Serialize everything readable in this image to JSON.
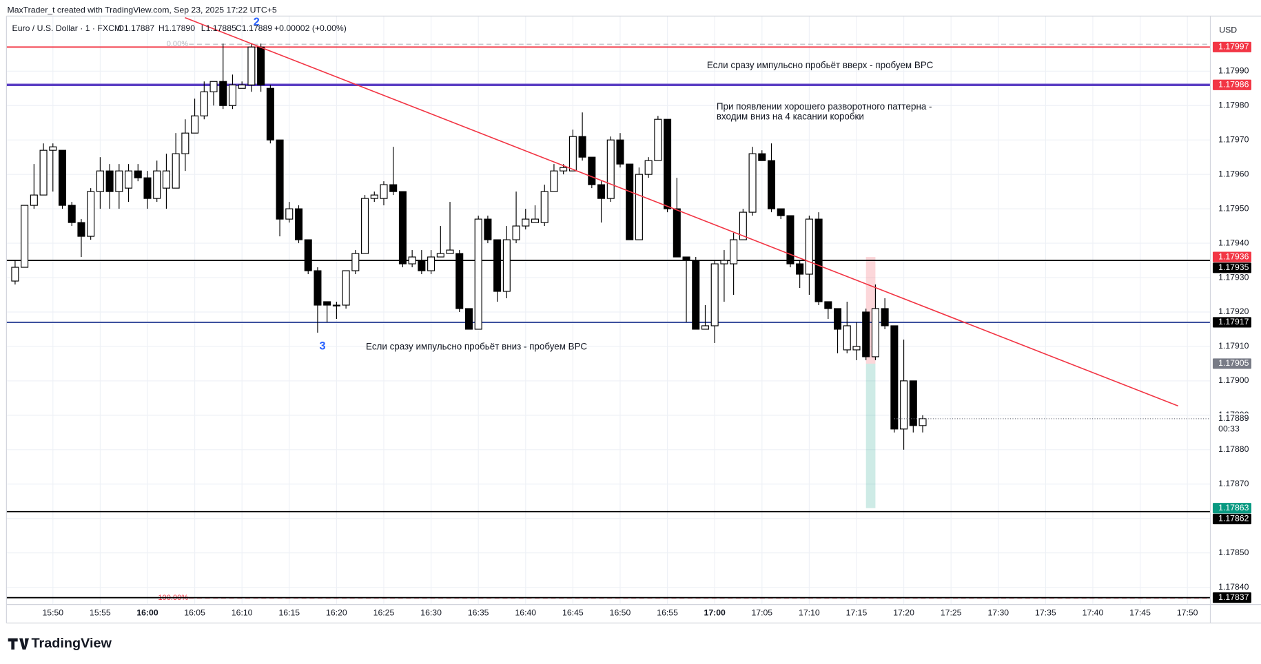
{
  "header": {
    "attribution": "MaxTrader_t created with TradingView.com, Sep 23, 2025 17:22 UTC+5",
    "symbol": "Euro / U.S. Dollar · 1 · FXCM",
    "ohlc": [
      "O1.17887",
      "H1.17890",
      "L1.17885",
      "C1.17889"
    ],
    "change": "+0.00002 (+0.00%)"
  },
  "chart_data": {
    "type": "candlestick",
    "x": [
      "15:46",
      "15:47",
      "15:48",
      "15:49",
      "15:50",
      "15:51",
      "15:52",
      "15:53",
      "15:54",
      "15:55",
      "15:56",
      "15:57",
      "15:58",
      "15:59",
      "16:00",
      "16:01",
      "16:02",
      "16:03",
      "16:04",
      "16:05",
      "16:06",
      "16:07",
      "16:08",
      "16:09",
      "16:10",
      "16:11",
      "16:12",
      "16:13",
      "16:14",
      "16:15",
      "16:16",
      "16:17",
      "16:18",
      "16:19",
      "16:20",
      "16:21",
      "16:22",
      "16:23",
      "16:24",
      "16:25",
      "16:26",
      "16:27",
      "16:28",
      "16:29",
      "16:30",
      "16:31",
      "16:32",
      "16:33",
      "16:34",
      "16:35",
      "16:36",
      "16:37",
      "16:38",
      "16:39",
      "16:40",
      "16:41",
      "16:42",
      "16:43",
      "16:44",
      "16:45",
      "16:46",
      "16:47",
      "16:48",
      "16:49",
      "16:50",
      "16:51",
      "16:52",
      "16:53",
      "16:54",
      "16:55",
      "16:56",
      "16:57",
      "16:58",
      "16:59",
      "17:00",
      "17:01",
      "17:02",
      "17:03",
      "17:04",
      "17:05",
      "17:06",
      "17:07",
      "17:08",
      "17:09",
      "17:10",
      "17:11",
      "17:12",
      "17:13",
      "17:14",
      "17:15",
      "17:16",
      "17:17",
      "17:18",
      "17:19",
      "17:20",
      "17:21",
      "17:22"
    ],
    "open": [
      1.17929,
      1.17933,
      1.17951,
      1.17954,
      1.17967,
      1.17967,
      1.17951,
      1.17946,
      1.17942,
      1.17955,
      1.17961,
      1.17955,
      1.17956,
      1.17961,
      1.17959,
      1.17953,
      1.17956,
      1.17956,
      1.17966,
      1.17972,
      1.17977,
      1.17984,
      1.17987,
      1.1798,
      1.17985,
      1.17986,
      1.17997,
      1.17985,
      1.1797,
      1.17947,
      1.1795,
      1.17941,
      1.17932,
      1.17923,
      1.17922,
      1.17922,
      1.17932,
      1.17937,
      1.17953,
      1.17953,
      1.17957,
      1.17955,
      1.17934,
      1.17935,
      1.17932,
      1.17936,
      1.17937,
      1.17937,
      1.17921,
      1.17915,
      1.17947,
      1.17941,
      1.17926,
      1.17941,
      1.17945,
      1.17946,
      1.17946,
      1.17955,
      1.17961,
      1.17961,
      1.17971,
      1.17965,
      1.17957,
      1.17953,
      1.1797,
      1.17963,
      1.17941,
      1.1796,
      1.17964,
      1.17976,
      1.1795,
      1.17936,
      1.17935,
      1.17915,
      1.17916,
      1.17934,
      1.17934,
      1.17941,
      1.17949,
      1.17966,
      1.17964,
      1.1795,
      1.17948,
      1.17934,
      1.17931,
      1.17947,
      1.17923,
      1.17921,
      1.17909,
      1.17909,
      1.1792,
      1.17907,
      1.17921,
      1.17916,
      1.17886,
      1.179,
      1.17887
    ],
    "high": [
      1.17935,
      1.17951,
      1.17963,
      1.17969,
      1.17969,
      1.17967,
      1.17952,
      1.17947,
      1.17956,
      1.17965,
      1.17963,
      1.17963,
      1.17963,
      1.17963,
      1.17961,
      1.17964,
      1.17966,
      1.17972,
      1.17976,
      1.17982,
      1.17987,
      1.17987,
      1.17998,
      1.17989,
      1.17987,
      1.17998,
      1.17998,
      1.17986,
      1.1797,
      1.17952,
      1.17951,
      1.17941,
      1.17933,
      1.17923,
      1.17923,
      1.17932,
      1.17938,
      1.17954,
      1.17955,
      1.17958,
      1.17968,
      1.17955,
      1.17938,
      1.17938,
      1.17938,
      1.17945,
      1.17952,
      1.17938,
      1.17921,
      1.17948,
      1.17948,
      1.17941,
      1.17945,
      1.17955,
      1.1795,
      1.17951,
      1.17957,
      1.17963,
      1.17963,
      1.17973,
      1.17978,
      1.17965,
      1.17958,
      1.17971,
      1.17972,
      1.17963,
      1.17962,
      1.17965,
      1.17977,
      1.17976,
      1.17959,
      1.17936,
      1.17936,
      1.17922,
      1.17935,
      1.17938,
      1.17943,
      1.1795,
      1.17968,
      1.17967,
      1.17969,
      1.1795,
      1.17948,
      1.17935,
      1.17948,
      1.17949,
      1.17923,
      1.17921,
      1.17923,
      1.17917,
      1.17921,
      1.17928,
      1.17924,
      1.17916,
      1.17912,
      1.179,
      1.1789
    ],
    "low": [
      1.17928,
      1.17933,
      1.1795,
      1.17954,
      1.17955,
      1.1795,
      1.17945,
      1.17936,
      1.17941,
      1.1795,
      1.1795,
      1.1795,
      1.17952,
      1.17958,
      1.1795,
      1.17952,
      1.1795,
      1.17956,
      1.17961,
      1.17972,
      1.17976,
      1.1798,
      1.17979,
      1.17979,
      1.17985,
      1.17984,
      1.17984,
      1.17969,
      1.17942,
      1.17946,
      1.1794,
      1.17931,
      1.17914,
      1.17917,
      1.17918,
      1.17921,
      1.17931,
      1.17937,
      1.17952,
      1.17951,
      1.17954,
      1.17933,
      1.17933,
      1.17931,
      1.17931,
      1.17936,
      1.17937,
      1.1792,
      1.17915,
      1.17915,
      1.1794,
      1.17923,
      1.17924,
      1.1794,
      1.17944,
      1.17946,
      1.17945,
      1.17955,
      1.1796,
      1.17961,
      1.17964,
      1.17956,
      1.17946,
      1.17952,
      1.17962,
      1.17941,
      1.17941,
      1.17959,
      1.17964,
      1.17949,
      1.17936,
      1.17917,
      1.17915,
      1.17915,
      1.17911,
      1.17923,
      1.17925,
      1.17941,
      1.17948,
      1.17964,
      1.17949,
      1.17947,
      1.17933,
      1.17927,
      1.17925,
      1.17922,
      1.17918,
      1.17908,
      1.17908,
      1.17906,
      1.17906,
      1.17906,
      1.17915,
      1.17885,
      1.1788,
      1.17885,
      1.17885
    ],
    "close": [
      1.17933,
      1.17951,
      1.17954,
      1.17967,
      1.17968,
      1.17951,
      1.17946,
      1.17942,
      1.17955,
      1.17961,
      1.17955,
      1.17961,
      1.17961,
      1.17959,
      1.17953,
      1.17961,
      1.17961,
      1.17966,
      1.17972,
      1.17977,
      1.17984,
      1.17987,
      1.1798,
      1.17986,
      1.17986,
      1.17997,
      1.17986,
      1.1797,
      1.17947,
      1.1795,
      1.17941,
      1.17932,
      1.17922,
      1.17922,
      1.17922,
      1.17932,
      1.17937,
      1.17953,
      1.17954,
      1.17957,
      1.17955,
      1.17934,
      1.17936,
      1.17932,
      1.17936,
      1.17937,
      1.17938,
      1.17921,
      1.17915,
      1.17947,
      1.17941,
      1.17926,
      1.17941,
      1.17945,
      1.17947,
      1.17947,
      1.17955,
      1.17961,
      1.17962,
      1.17971,
      1.17965,
      1.17957,
      1.17953,
      1.1797,
      1.17963,
      1.17941,
      1.1796,
      1.17964,
      1.17976,
      1.1795,
      1.17936,
      1.17935,
      1.17915,
      1.17916,
      1.17934,
      1.17935,
      1.17941,
      1.17949,
      1.17966,
      1.17964,
      1.1795,
      1.17948,
      1.17934,
      1.17931,
      1.17947,
      1.17923,
      1.17921,
      1.17915,
      1.17916,
      1.1791,
      1.17907,
      1.17921,
      1.17916,
      1.17886,
      1.179,
      1.17887,
      1.17889
    ],
    "up_color": "#ffffff",
    "down_color": "#000000",
    "wick_color": "#000000",
    "ylim": [
      1.17835,
      1.18006
    ],
    "yticks": [
      {
        "value": 1.1799,
        "label": "1.17990"
      },
      {
        "value": 1.1798,
        "label": "1.17980"
      },
      {
        "value": 1.1797,
        "label": "1.17970"
      },
      {
        "value": 1.1796,
        "label": "1.17960"
      },
      {
        "value": 1.1795,
        "label": "1.17950"
      },
      {
        "value": 1.1794,
        "label": "1.17940"
      },
      {
        "value": 1.1793,
        "label": "1.17930"
      },
      {
        "value": 1.1792,
        "label": "1.17920"
      },
      {
        "value": 1.1791,
        "label": "1.17910"
      },
      {
        "value": 1.179,
        "label": "1.17900"
      },
      {
        "value": 1.1789,
        "label": "1.17890"
      },
      {
        "value": 1.1788,
        "label": "1.17880"
      },
      {
        "value": 1.1787,
        "label": "1.17870"
      },
      {
        "value": 1.1786,
        "label": "1.17860"
      },
      {
        "value": 1.1785,
        "label": "1.17850"
      },
      {
        "value": 1.1784,
        "label": "1.17840"
      }
    ],
    "xlim": [
      "15:45",
      "17:52"
    ],
    "xticks": [
      "15:50",
      "15:55",
      "16:00",
      "16:05",
      "16:10",
      "16:15",
      "16:20",
      "16:25",
      "16:30",
      "16:35",
      "16:40",
      "16:45",
      "16:50",
      "16:55",
      "17:00",
      "17:05",
      "17:10",
      "17:15",
      "17:20",
      "17:25",
      "17:30",
      "17:35",
      "17:40",
      "17:45",
      "17:50"
    ],
    "grid": true,
    "currency": "USD",
    "countdown": "00:33",
    "levels": [
      {
        "value": 1.17997,
        "line": "#f23645",
        "badge": "#f23645"
      },
      {
        "value": 1.17986,
        "line": "#5b3fc4",
        "badge": "#f23645"
      },
      {
        "value": 1.17935,
        "line": "#000000",
        "badge": "#000000"
      },
      {
        "value": 1.17917,
        "line": "#2a3f94",
        "badge": "#000000"
      },
      {
        "value": 1.17862,
        "line": "#000000",
        "badge": "#000000"
      },
      {
        "value": 1.17837,
        "line": "#000000",
        "badge": "#000000"
      }
    ],
    "position": {
      "start": "17:16",
      "end": "17:17",
      "stop": 1.17936,
      "stop_color": "#f23645",
      "entry": 1.17905,
      "entry_color": "#787b86",
      "target": 1.17863,
      "target_color": "#089981"
    }
  },
  "annotations": {
    "wave_2": "2",
    "wave_3": "3",
    "note_up": "Если сразу импульсно пробьёт вверх - пробуем ВРС",
    "note_pattern": [
      "При появлении хорошего разворотного паттерна -",
      "входим вниз на 4 касании коробки"
    ],
    "note_down": "Если сразу импульсно пробьёт вниз - пробуем ВРС"
  },
  "fib": {
    "top": "0.00%",
    "bottom": "100.00%"
  },
  "brand": "TradingView"
}
